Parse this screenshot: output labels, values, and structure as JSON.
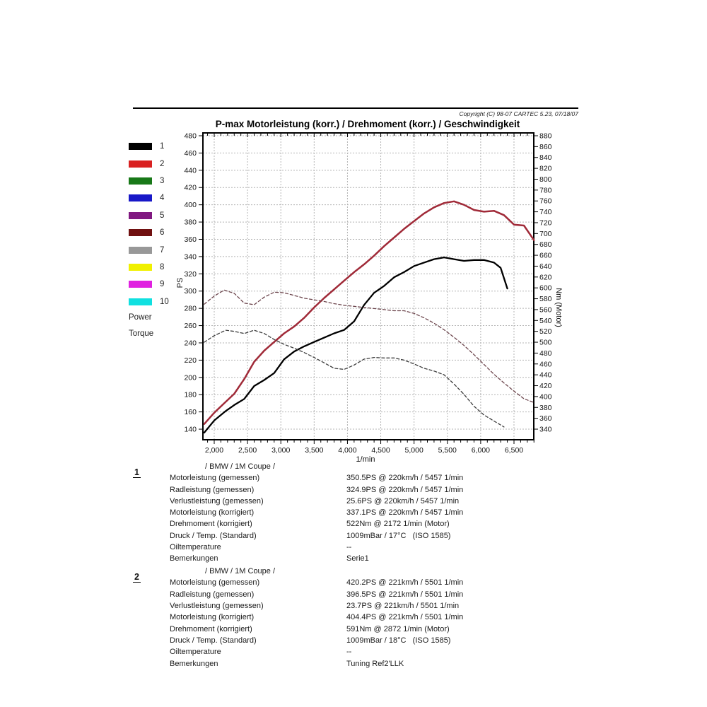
{
  "header": {
    "copyright": "Copyright (C) 98-07 CARTEC 5.23, 07/18/07",
    "title": "P-max Motorleistung (korr.) / Drehmoment (korr.) / Geschwindigkeit"
  },
  "legend": {
    "items": [
      {
        "num": "1",
        "color": "#000000"
      },
      {
        "num": "2",
        "color": "#d92121"
      },
      {
        "num": "3",
        "color": "#187818"
      },
      {
        "num": "4",
        "color": "#1818c8"
      },
      {
        "num": "5",
        "color": "#801880"
      },
      {
        "num": "6",
        "color": "#701010"
      },
      {
        "num": "7",
        "color": "#989898"
      },
      {
        "num": "8",
        "color": "#f0f000"
      },
      {
        "num": "9",
        "color": "#e020e0"
      },
      {
        "num": "10",
        "color": "#10e0e0"
      }
    ],
    "power_label": "Power",
    "torque_label": "Torque"
  },
  "chart_data": {
    "type": "line",
    "title": "P-max Motorleistung (korr.) / Drehmoment (korr.) / Geschwindigkeit",
    "xlabel": "1/min",
    "ylabel_left": "PS",
    "ylabel_right": "Nm (Motor)",
    "x_range": [
      1830,
      6800
    ],
    "left_axis": {
      "min": 140,
      "max": 480,
      "step": 20
    },
    "right_axis": {
      "min": 340,
      "max": 880,
      "step": 20
    },
    "x_tick_values": [
      2000,
      2500,
      3000,
      3500,
      4000,
      4500,
      5000,
      5500,
      6000,
      6500
    ],
    "x_tick_labels": [
      "2,000",
      "2,500",
      "3,000",
      "3,500",
      "4,000",
      "4,500",
      "5,000",
      "5,500",
      "6,000",
      "6,500"
    ],
    "x_minor_step": 100,
    "grid": true,
    "series": [
      {
        "id": "power-1",
        "name": "Motorleistung Messung 1 (korr.)",
        "axis": "left",
        "unit": "PS",
        "color": "#000000",
        "width": 2.3,
        "dash": "",
        "x": [
          1850,
          2000,
          2172,
          2300,
          2450,
          2600,
          2750,
          2900,
          3050,
          3200,
          3350,
          3500,
          3650,
          3800,
          3950,
          4100,
          4250,
          4400,
          4550,
          4700,
          4850,
          5000,
          5150,
          5300,
          5450,
          5600,
          5750,
          5900,
          6050,
          6200,
          6300,
          6400
        ],
        "y": [
          136,
          150,
          161,
          168,
          175,
          190,
          197,
          205,
          221,
          230,
          236,
          241,
          246,
          251,
          255,
          265,
          284,
          298,
          306,
          316,
          322,
          329,
          333,
          337,
          339,
          337,
          335,
          336,
          336,
          333,
          327,
          303
        ]
      },
      {
        "id": "power-2",
        "name": "Motorleistung Messung 2 (korr.)",
        "axis": "left",
        "unit": "PS",
        "color": "#a02a38",
        "width": 2.5,
        "dash": "",
        "x": [
          1850,
          2000,
          2150,
          2300,
          2450,
          2600,
          2750,
          2900,
          3050,
          3200,
          3350,
          3500,
          3650,
          3800,
          3950,
          4100,
          4250,
          4400,
          4550,
          4700,
          4850,
          5000,
          5150,
          5300,
          5450,
          5600,
          5750,
          5900,
          6050,
          6200,
          6350,
          6500,
          6650,
          6800
        ],
        "y": [
          146,
          159,
          170,
          181,
          198,
          218,
          231,
          241,
          251,
          259,
          269,
          281,
          292,
          302,
          312,
          322,
          331,
          341,
          352,
          362,
          372,
          381,
          390,
          397,
          402,
          404,
          400,
          394,
          392,
          393,
          388,
          377,
          376,
          359
        ]
      },
      {
        "id": "torque-1",
        "name": "Drehmoment Messung 1",
        "axis": "right",
        "unit": "Nm",
        "color": "#3c3c3c",
        "width": 1.3,
        "dash": "4 3",
        "x": [
          1850,
          2000,
          2172,
          2300,
          2450,
          2600,
          2750,
          2900,
          3050,
          3200,
          3350,
          3500,
          3650,
          3800,
          3950,
          4100,
          4250,
          4400,
          4550,
          4700,
          4850,
          5000,
          5150,
          5300,
          5450,
          5600,
          5750,
          5900,
          6050,
          6200,
          6350
        ],
        "y": [
          500,
          512,
          522,
          520,
          516,
          522,
          516,
          505,
          496,
          489,
          481,
          472,
          462,
          452,
          450,
          458,
          469,
          472,
          471,
          471,
          467,
          460,
          452,
          447,
          440,
          423,
          404,
          382,
          366,
          355,
          344
        ]
      },
      {
        "id": "torque-2",
        "name": "Drehmoment Messung 2",
        "axis": "right",
        "unit": "Nm",
        "color": "#6d464d",
        "width": 1.3,
        "dash": "4 3",
        "x": [
          1850,
          2000,
          2150,
          2300,
          2450,
          2600,
          2750,
          2900,
          3050,
          3200,
          3350,
          3500,
          3650,
          3800,
          3950,
          4100,
          4250,
          4400,
          4550,
          4700,
          4850,
          5000,
          5150,
          5300,
          5450,
          5600,
          5750,
          5900,
          6050,
          6200,
          6350,
          6500,
          6650,
          6800
        ],
        "y": [
          570,
          585,
          596,
          590,
          572,
          569,
          583,
          592,
          591,
          586,
          581,
          578,
          575,
          571,
          568,
          566,
          564,
          562,
          560,
          558,
          558,
          553,
          545,
          535,
          523,
          509,
          494,
          477,
          459,
          441,
          425,
          410,
          396,
          389
        ]
      }
    ]
  },
  "blocks": [
    {
      "num": "1",
      "vehicle": "/ BMW / 1M Coupe /",
      "rows": [
        {
          "label": "Motorleistung (gemessen)",
          "value": "350.5PS @ 220km/h / 5457 1/min"
        },
        {
          "label": "Radleistung (gemessen)",
          "value": "324.9PS @ 220km/h / 5457 1/min"
        },
        {
          "label": "Verlustleistung (gemessen)",
          "value": "25.6PS @ 220km/h / 5457 1/min"
        },
        {
          "label": "Motorleistung (korrigiert)",
          "value": "337.1PS @ 220km/h / 5457 1/min"
        },
        {
          "label": "Drehmoment (korrigiert)",
          "value": "522Nm @ 2172 1/min (Motor)"
        },
        {
          "label": "Druck / Temp. (Standard)",
          "value": "1009mBar / 17°C   (ISO 1585)"
        },
        {
          "label": "Oiltemperature",
          "value": "--"
        },
        {
          "label": "Bemerkungen",
          "value": "Serie1"
        }
      ]
    },
    {
      "num": "2",
      "vehicle": "/ BMW / 1M Coupe /",
      "rows": [
        {
          "label": "Motorleistung (gemessen)",
          "value": "420.2PS @ 221km/h / 5501 1/min"
        },
        {
          "label": "Radleistung (gemessen)",
          "value": "396.5PS @ 221km/h / 5501 1/min"
        },
        {
          "label": "Verlustleistung (gemessen)",
          "value": "23.7PS @ 221km/h / 5501 1/min"
        },
        {
          "label": "Motorleistung (korrigiert)",
          "value": "404.4PS @ 221km/h / 5501 1/min"
        },
        {
          "label": "Drehmoment (korrigiert)",
          "value": "591Nm @ 2872 1/min (Motor)"
        },
        {
          "label": "Druck / Temp. (Standard)",
          "value": "1009mBar / 18°C   (ISO 1585)"
        },
        {
          "label": "Oiltemperature",
          "value": "--"
        },
        {
          "label": "Bemerkungen",
          "value": "Tuning Ref2'LLK"
        }
      ]
    }
  ]
}
